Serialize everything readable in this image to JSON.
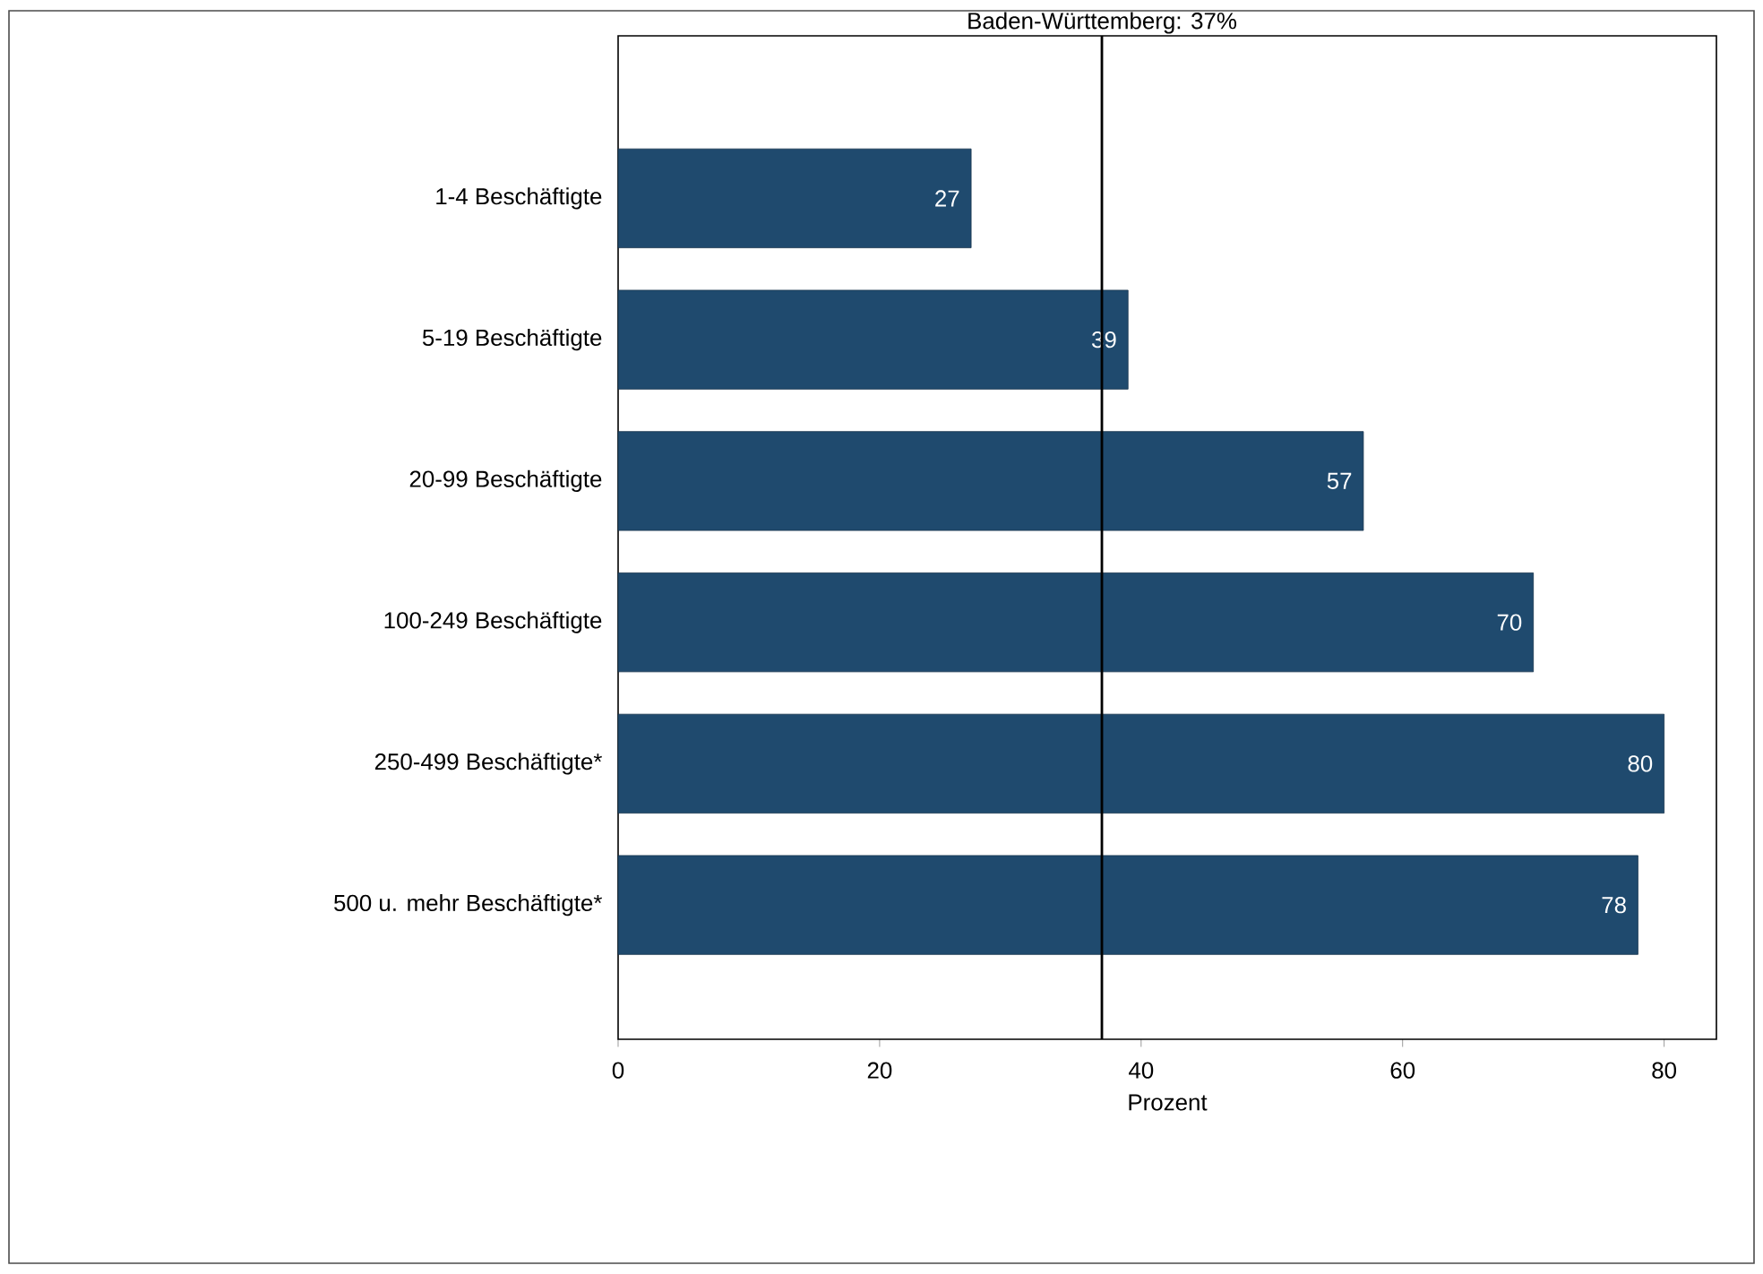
{
  "chart_data": {
    "type": "bar",
    "orientation": "horizontal",
    "xlabel": "Prozent",
    "categories": [
      "1-4 Beschäftigte",
      "5-19 Beschäftigte",
      "20-99 Beschäftigte",
      "100-249 Beschäftigte",
      "250-499 Beschäftigte*",
      "500 u. mehr Beschäftigte*"
    ],
    "values": [
      27,
      39,
      57,
      70,
      80,
      78
    ],
    "color": "#1f4a6e",
    "data_labels": true,
    "xlim": [
      0,
      84
    ],
    "xticks": [
      0,
      20,
      40,
      60,
      80
    ],
    "grid": false,
    "ref_lines": [
      {
        "axis": "x",
        "value": 37,
        "label": "Baden-Württemberg: 37%",
        "color": "#000000"
      }
    ]
  }
}
